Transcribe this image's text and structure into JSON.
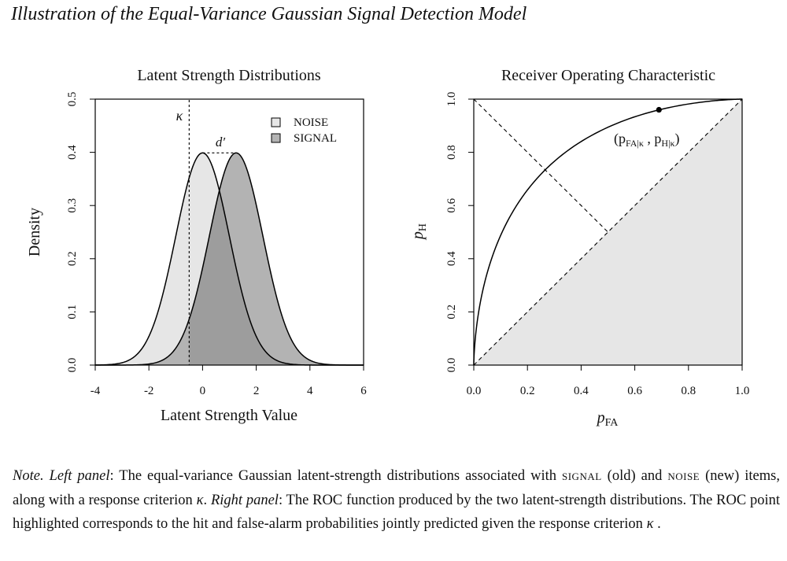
{
  "figure_title": "Illustration of the Equal-Variance Gaussian Signal Detection Model",
  "chart_data": [
    {
      "type": "area",
      "title": "Latent Strength Distributions",
      "xlabel": "Latent Strength Value",
      "ylabel": "Density",
      "xlim": [
        -4,
        6
      ],
      "ylim": [
        0,
        0.5
      ],
      "xticks": [
        "-4",
        "-2",
        "0",
        "2",
        "4",
        "6"
      ],
      "yticks": [
        "0.0",
        "0.1",
        "0.2",
        "0.3",
        "0.4",
        "0.5"
      ],
      "legend_position": "top-right",
      "series": [
        {
          "name": "NOISE",
          "distribution": "normal",
          "mean": 0,
          "sd": 1,
          "fill": "#e6e6e6"
        },
        {
          "name": "SIGNAL",
          "distribution": "normal",
          "mean": 1.25,
          "sd": 1,
          "fill": "#b3b3b3"
        }
      ],
      "criterion": {
        "label": "κ",
        "x": -0.5
      },
      "dprime_label": "d′",
      "shaded_above_criterion": true
    },
    {
      "type": "line",
      "title": "Receiver Operating Characteristic",
      "xlabel_main": "p",
      "xlabel_sub": "FA",
      "ylabel_main": "p",
      "ylabel_sub": "H",
      "xlim": [
        0,
        1
      ],
      "ylim": [
        0,
        1
      ],
      "xticks": [
        "0.0",
        "0.2",
        "0.4",
        "0.6",
        "0.8",
        "1.0"
      ],
      "yticks": [
        "0.0",
        "0.2",
        "0.4",
        "0.6",
        "0.8",
        "1.0"
      ],
      "roc_dprime": 1.25,
      "chance_line": [
        [
          0,
          0
        ],
        [
          1,
          1
        ]
      ],
      "negative_diagonal": [
        [
          0,
          1
        ],
        [
          0.5,
          0.5
        ]
      ],
      "highlighted_point": {
        "x": 0.69,
        "y": 0.96
      },
      "point_label_main_1": "(p",
      "point_label_sub_1": "FA|κ",
      "point_label_sep": " , p",
      "point_label_sub_2": "H|κ",
      "point_label_close": ")",
      "below_chance_fill": "#e6e6e6"
    }
  ],
  "note": {
    "label": "Note.",
    "left_panel_label": "Left panel",
    "t1": ": The equal-variance Gaussian latent-strength distributions associated with ",
    "signal": "SIGNAL",
    "t2": " (old) and ",
    "noise": "NOISE",
    "t3": " (new) items, along with a response criterion ",
    "kappa": "κ",
    "t4": ". ",
    "right_panel_label": "Right panel",
    "t5": ": The ROC function produced by the two latent-strength distributions.  The ROC point highlighted corresponds to the hit and false-alarm probabilities jointly predicted given the response criterion ",
    "t6": " ."
  }
}
